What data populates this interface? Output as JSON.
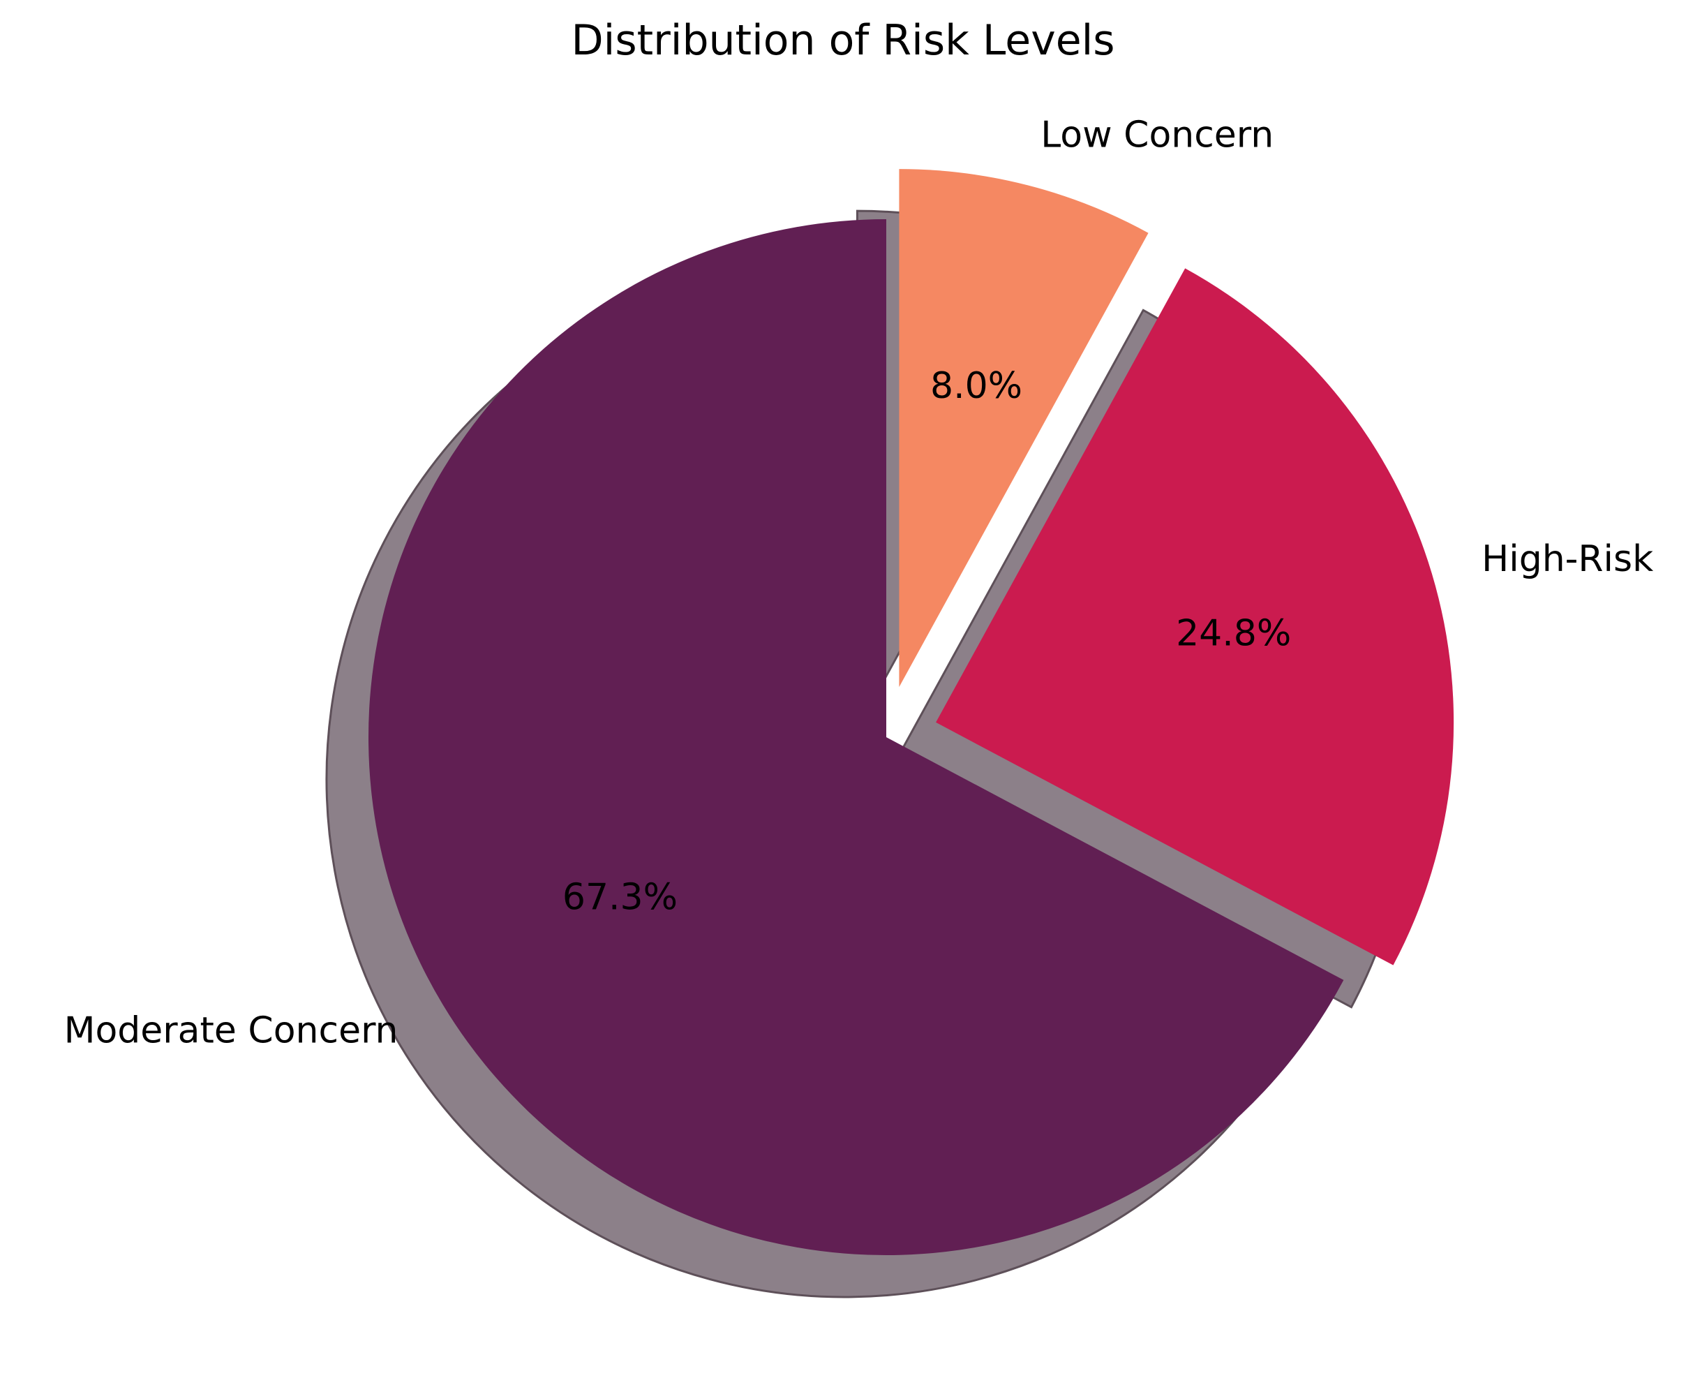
{
  "chart_data": {
    "type": "pie",
    "title": "Distribution of Risk Levels",
    "slices": [
      {
        "label": "Low Concern",
        "percent": 8.0,
        "percent_label": "8.0%",
        "color": "#f58862",
        "exploded": true
      },
      {
        "label": "High-Risk",
        "percent": 24.8,
        "percent_label": "24.8%",
        "color": "#cb1b4f",
        "exploded": true
      },
      {
        "label": "Moderate Concern",
        "percent": 67.3,
        "percent_label": "67.3%",
        "color": "#611f53",
        "exploded": false
      }
    ],
    "start_angle": 90,
    "direction": "clockwise",
    "shadow": true,
    "shadow_color": "#8c8089"
  }
}
